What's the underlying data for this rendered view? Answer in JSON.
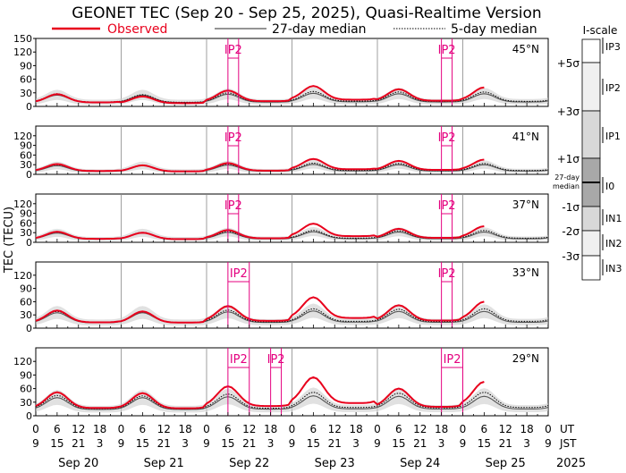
{
  "title": "GEONET TEC (Sep 20 - Sep 25, 2025), Quasi-Realtime Version",
  "legend": {
    "observed": "Observed",
    "median27": "27-day median",
    "median5": "5-day median"
  },
  "colors": {
    "observed": "#e8001c",
    "median27": "#555555",
    "median5": "#000000",
    "event": "#e4007f",
    "band": "#c8c8c8"
  },
  "ylabel": "TEC (TECU)",
  "axis_labels": {
    "ut": "UT",
    "jst": "JST",
    "year": "2025"
  },
  "ut_ticks": [
    "0",
    "6",
    "12",
    "18",
    "0",
    "6",
    "12",
    "18",
    "0",
    "6",
    "12",
    "18",
    "0",
    "6",
    "12",
    "18",
    "0",
    "6",
    "12",
    "18",
    "0",
    "6",
    "12",
    "18",
    "0"
  ],
  "jst_ticks": [
    "9",
    "15",
    "21",
    "3",
    "9",
    "15",
    "21",
    "3",
    "9",
    "15",
    "21",
    "3",
    "9",
    "15",
    "21",
    "3",
    "9",
    "15",
    "21",
    "3",
    "9",
    "15",
    "21",
    "3",
    "9"
  ],
  "days": [
    "Sep 20",
    "Sep 21",
    "Sep 22",
    "Sep 23",
    "Sep 24",
    "Sep 25"
  ],
  "iscale": {
    "title": "I-scale",
    "sigma_labels": [
      "+5σ",
      "+3σ",
      "+1σ",
      "27-day median",
      "-1σ",
      "-2σ",
      "-3σ"
    ],
    "levels": [
      "IP3",
      "IP2",
      "IP1",
      "I0",
      "IN1",
      "IN2",
      "IN3"
    ]
  },
  "chart_data": {
    "type": "line",
    "x_unit": "hours UT from Sep 20 00:00",
    "xlim": [
      0,
      144
    ],
    "panels": [
      {
        "label": "45°N",
        "ylim": [
          0,
          150
        ],
        "yticks": [
          0,
          30,
          60,
          90,
          120,
          150
        ],
        "events": [
          {
            "label": "IP2",
            "start": 54,
            "end": 57
          },
          {
            "label": "IP2",
            "start": 114,
            "end": 117
          }
        ],
        "observed_peaks": [
          27,
          22,
          35,
          45,
          38,
          42
        ],
        "median27_peaks": [
          25,
          25,
          27,
          29,
          28,
          28
        ],
        "median5_peaks": [
          28,
          26,
          30,
          33,
          32,
          32
        ]
      },
      {
        "label": "41°N",
        "ylim": [
          0,
          150
        ],
        "yticks": [
          0,
          30,
          60,
          90,
          120
        ],
        "events": [
          {
            "label": "IP2",
            "start": 54,
            "end": 57
          },
          {
            "label": "IP2",
            "start": 114,
            "end": 117
          }
        ],
        "observed_peaks": [
          32,
          28,
          35,
          48,
          42,
          46
        ],
        "median27_peaks": [
          27,
          27,
          29,
          31,
          30,
          30
        ],
        "median5_peaks": [
          30,
          29,
          32,
          35,
          34,
          34
        ]
      },
      {
        "label": "37°N",
        "ylim": [
          0,
          150
        ],
        "yticks": [
          0,
          30,
          60,
          90,
          120
        ],
        "events": [
          {
            "label": "IP2",
            "start": 54,
            "end": 57
          },
          {
            "label": "IP2",
            "start": 114,
            "end": 117
          }
        ],
        "observed_peaks": [
          33,
          30,
          38,
          58,
          42,
          50
        ],
        "median27_peaks": [
          29,
          29,
          31,
          33,
          32,
          32
        ],
        "median5_peaks": [
          32,
          31,
          34,
          37,
          36,
          37
        ]
      },
      {
        "label": "33°N",
        "ylim": [
          0,
          150
        ],
        "yticks": [
          0,
          30,
          60,
          90,
          120
        ],
        "events": [
          {
            "label": "IP2",
            "start": 54,
            "end": 60
          },
          {
            "label": "IP2",
            "start": 114,
            "end": 117
          }
        ],
        "observed_peaks": [
          40,
          38,
          50,
          70,
          52,
          60
        ],
        "median27_peaks": [
          35,
          35,
          37,
          39,
          38,
          38
        ],
        "median5_peaks": [
          38,
          37,
          41,
          44,
          43,
          44
        ]
      },
      {
        "label": "29°N",
        "ylim": [
          0,
          150
        ],
        "yticks": [
          0,
          30,
          60,
          90,
          120
        ],
        "events": [
          {
            "label": "IP2",
            "start": 54,
            "end": 60
          },
          {
            "label": "IP2",
            "start": 66,
            "end": 69
          },
          {
            "label": "IP2",
            "start": 114,
            "end": 120
          }
        ],
        "observed_peaks": [
          52,
          50,
          65,
          85,
          60,
          75
        ],
        "median27_peaks": [
          40,
          40,
          42,
          44,
          43,
          43
        ],
        "median5_peaks": [
          45,
          44,
          48,
          52,
          50,
          52
        ]
      }
    ]
  }
}
